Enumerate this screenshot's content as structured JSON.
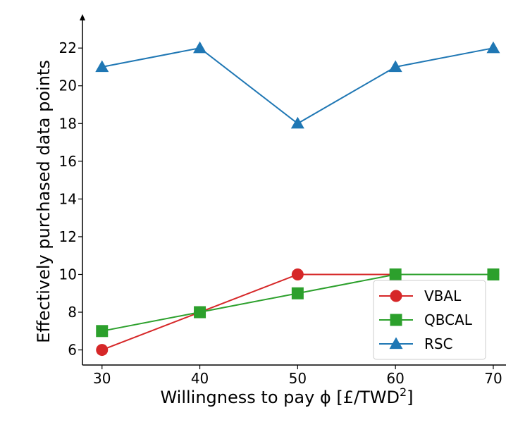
{
  "chart_data": {
    "type": "line",
    "xlabel": "Willingness to pay ϕ [£/TWD",
    "xlabel_superscript": "2",
    "xlabel_suffix": "]",
    "ylabel": "Effectively purchased data points",
    "x": [
      30,
      40,
      50,
      60,
      70
    ],
    "xticks": [
      30,
      40,
      50,
      60,
      70
    ],
    "yticks": [
      6,
      8,
      10,
      12,
      14,
      16,
      18,
      20,
      22
    ],
    "xlim": [
      28,
      71.3
    ],
    "ylim": [
      5.2,
      23.8
    ],
    "grid": false,
    "legend_position": "bottom-right",
    "series": [
      {
        "name": "VBAL",
        "values": [
          6,
          8,
          10,
          10,
          10
        ],
        "color": "#d62728",
        "marker": "circle"
      },
      {
        "name": "QBCAL",
        "values": [
          7,
          8,
          9,
          10,
          10
        ],
        "color": "#2ca02c",
        "marker": "square"
      },
      {
        "name": "RSC",
        "values": [
          21,
          22,
          18,
          21,
          22
        ],
        "color": "#1f77b4",
        "marker": "triangle"
      }
    ]
  }
}
